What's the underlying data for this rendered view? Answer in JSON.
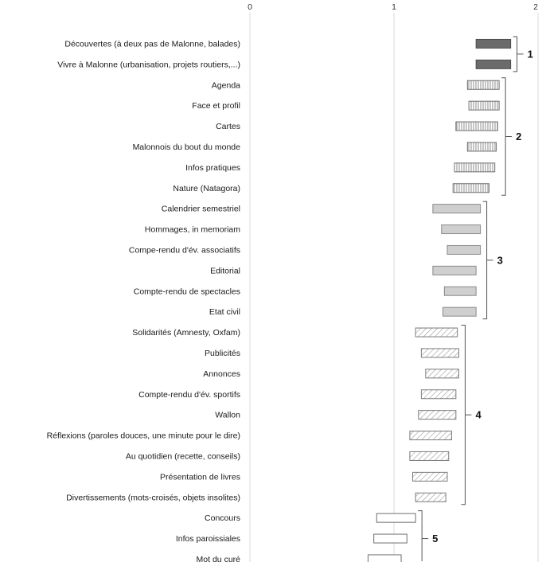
{
  "chart_data": {
    "type": "bar",
    "orientation": "horizontal",
    "subtype": "floating-range",
    "title": "",
    "xlabel": "",
    "ylabel": "",
    "xlim": [
      0,
      2
    ],
    "xticks": [
      "0",
      "1",
      "2"
    ],
    "grid": true,
    "legend": "none",
    "categories": [
      "Découvertes (à deux pas de Malonne, balades)",
      "Vivre à Malonne (urbanisation, projets routiers,...)",
      "Agenda",
      "Face et profil",
      "Cartes",
      "Malonnois du bout du monde",
      "Infos pratiques",
      "Nature (Natagora)",
      "Calendrier semestriel",
      "Hommages, in memoriam",
      "Compe-rendu d'év. associatifs",
      "Editorial",
      "Compte-rendu de spectacles",
      "Etat civil",
      "Solidarités (Amnesty, Oxfam)",
      "Publicités",
      "Annonces",
      "Compte-rendu d'év. sportifs",
      "Wallon",
      "Réflexions (paroles douces, une minute pour le dire)",
      "Au quotidien (recette, conseils)",
      "Présentation de livres",
      "Divertissements (mots-croisés, objets insolites)",
      "Concours",
      "Infos paroissiales",
      "Mot du curé"
    ],
    "ranges": [
      [
        1.57,
        1.81
      ],
      [
        1.57,
        1.81
      ],
      [
        1.51,
        1.73
      ],
      [
        1.52,
        1.73
      ],
      [
        1.43,
        1.72
      ],
      [
        1.51,
        1.71
      ],
      [
        1.42,
        1.7
      ],
      [
        1.41,
        1.66
      ],
      [
        1.27,
        1.6
      ],
      [
        1.33,
        1.6
      ],
      [
        1.37,
        1.6
      ],
      [
        1.27,
        1.57
      ],
      [
        1.35,
        1.57
      ],
      [
        1.34,
        1.57
      ],
      [
        1.15,
        1.44
      ],
      [
        1.19,
        1.45
      ],
      [
        1.22,
        1.45
      ],
      [
        1.19,
        1.43
      ],
      [
        1.17,
        1.43
      ],
      [
        1.11,
        1.4
      ],
      [
        1.11,
        1.38
      ],
      [
        1.13,
        1.37
      ],
      [
        1.15,
        1.36
      ],
      [
        0.88,
        1.15
      ],
      [
        0.86,
        1.09
      ],
      [
        0.82,
        1.05
      ]
    ],
    "groups": [
      {
        "label": "1",
        "start": 0,
        "end": 1,
        "pattern": "solid",
        "color": "#6b6b6b"
      },
      {
        "label": "2",
        "start": 2,
        "end": 7,
        "pattern": "vertical-lines",
        "color": "#8c8c8c"
      },
      {
        "label": "3",
        "start": 8,
        "end": 13,
        "pattern": "light-fill",
        "color": "#c9c9c9"
      },
      {
        "label": "4",
        "start": 14,
        "end": 22,
        "pattern": "diagonal-hatch",
        "color": "#9a9a9a"
      },
      {
        "label": "5",
        "start": 23,
        "end": 25,
        "pattern": "empty",
        "color": "#777777"
      }
    ]
  }
}
